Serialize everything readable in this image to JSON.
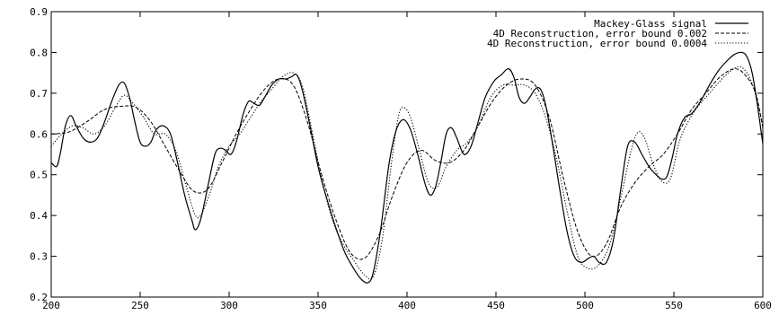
{
  "chart_data": {
    "type": "line",
    "title": "",
    "xlabel": "",
    "ylabel": "",
    "xlim": [
      200,
      600
    ],
    "ylim": [
      0.2,
      0.9
    ],
    "grid": false,
    "legend_position": "top-right",
    "x_ticks": [
      "200",
      "250",
      "300",
      "350",
      "400",
      "450",
      "500",
      "550",
      "600"
    ],
    "y_ticks": [
      "0.2",
      "0.3",
      "0.4",
      "0.5",
      "0.6",
      "0.7",
      "0.8",
      "0.9"
    ],
    "series": [
      {
        "name": "Mackey-Glass signal",
        "style": "solid",
        "points": [
          [
            200,
            0.53
          ],
          [
            203,
            0.52
          ],
          [
            205,
            0.55
          ],
          [
            208,
            0.62
          ],
          [
            211,
            0.645
          ],
          [
            214,
            0.62
          ],
          [
            218,
            0.59
          ],
          [
            222,
            0.58
          ],
          [
            226,
            0.59
          ],
          [
            230,
            0.63
          ],
          [
            234,
            0.68
          ],
          [
            238,
            0.72
          ],
          [
            241,
            0.725
          ],
          [
            244,
            0.69
          ],
          [
            247,
            0.63
          ],
          [
            250,
            0.58
          ],
          [
            253,
            0.57
          ],
          [
            256,
            0.58
          ],
          [
            259,
            0.61
          ],
          [
            263,
            0.62
          ],
          [
            267,
            0.6
          ],
          [
            271,
            0.53
          ],
          [
            275,
            0.45
          ],
          [
            279,
            0.39
          ],
          [
            281,
            0.365
          ],
          [
            284,
            0.39
          ],
          [
            288,
            0.47
          ],
          [
            292,
            0.55
          ],
          [
            295,
            0.565
          ],
          [
            298,
            0.56
          ],
          [
            301,
            0.55
          ],
          [
            304,
            0.58
          ],
          [
            308,
            0.65
          ],
          [
            311,
            0.68
          ],
          [
            314,
            0.675
          ],
          [
            317,
            0.67
          ],
          [
            320,
            0.69
          ],
          [
            324,
            0.72
          ],
          [
            328,
            0.735
          ],
          [
            332,
            0.735
          ],
          [
            335,
            0.74
          ],
          [
            338,
            0.745
          ],
          [
            341,
            0.71
          ],
          [
            345,
            0.63
          ],
          [
            350,
            0.52
          ],
          [
            355,
            0.44
          ],
          [
            360,
            0.37
          ],
          [
            365,
            0.31
          ],
          [
            370,
            0.27
          ],
          [
            374,
            0.245
          ],
          [
            378,
            0.235
          ],
          [
            381,
            0.26
          ],
          [
            385,
            0.36
          ],
          [
            390,
            0.53
          ],
          [
            394,
            0.61
          ],
          [
            398,
            0.635
          ],
          [
            402,
            0.61
          ],
          [
            406,
            0.55
          ],
          [
            410,
            0.48
          ],
          [
            413,
            0.45
          ],
          [
            416,
            0.47
          ],
          [
            419,
            0.53
          ],
          [
            422,
            0.6
          ],
          [
            425,
            0.615
          ],
          [
            428,
            0.59
          ],
          [
            432,
            0.55
          ],
          [
            436,
            0.57
          ],
          [
            440,
            0.63
          ],
          [
            444,
            0.69
          ],
          [
            449,
            0.73
          ],
          [
            453,
            0.745
          ],
          [
            457,
            0.76
          ],
          [
            460,
            0.74
          ],
          [
            463,
            0.69
          ],
          [
            466,
            0.675
          ],
          [
            469,
            0.69
          ],
          [
            472,
            0.71
          ],
          [
            475,
            0.71
          ],
          [
            478,
            0.67
          ],
          [
            482,
            0.57
          ],
          [
            486,
            0.46
          ],
          [
            490,
            0.36
          ],
          [
            494,
            0.3
          ],
          [
            498,
            0.285
          ],
          [
            502,
            0.295
          ],
          [
            505,
            0.3
          ],
          [
            508,
            0.285
          ],
          [
            512,
            0.285
          ],
          [
            516,
            0.34
          ],
          [
            520,
            0.46
          ],
          [
            524,
            0.57
          ],
          [
            528,
            0.58
          ],
          [
            532,
            0.55
          ],
          [
            536,
            0.52
          ],
          [
            540,
            0.5
          ],
          [
            543,
            0.49
          ],
          [
            546,
            0.495
          ],
          [
            549,
            0.54
          ],
          [
            552,
            0.6
          ],
          [
            556,
            0.64
          ],
          [
            560,
            0.65
          ],
          [
            565,
            0.68
          ],
          [
            570,
            0.72
          ],
          [
            575,
            0.755
          ],
          [
            580,
            0.78
          ],
          [
            584,
            0.795
          ],
          [
            588,
            0.8
          ],
          [
            591,
            0.79
          ],
          [
            594,
            0.75
          ],
          [
            597,
            0.67
          ],
          [
            600,
            0.575
          ]
        ]
      },
      {
        "name": "4D Reconstruction, error bound  0.002",
        "style": "dashed",
        "points": [
          [
            200,
            0.6
          ],
          [
            210,
            0.605
          ],
          [
            220,
            0.63
          ],
          [
            230,
            0.66
          ],
          [
            240,
            0.668
          ],
          [
            248,
            0.665
          ],
          [
            256,
            0.63
          ],
          [
            264,
            0.57
          ],
          [
            272,
            0.51
          ],
          [
            280,
            0.46
          ],
          [
            288,
            0.465
          ],
          [
            296,
            0.53
          ],
          [
            304,
            0.6
          ],
          [
            312,
            0.66
          ],
          [
            320,
            0.71
          ],
          [
            328,
            0.735
          ],
          [
            336,
            0.72
          ],
          [
            344,
            0.63
          ],
          [
            352,
            0.5
          ],
          [
            360,
            0.39
          ],
          [
            368,
            0.31
          ],
          [
            376,
            0.295
          ],
          [
            384,
            0.35
          ],
          [
            392,
            0.45
          ],
          [
            400,
            0.53
          ],
          [
            408,
            0.56
          ],
          [
            416,
            0.535
          ],
          [
            424,
            0.53
          ],
          [
            432,
            0.56
          ],
          [
            440,
            0.62
          ],
          [
            448,
            0.68
          ],
          [
            456,
            0.72
          ],
          [
            464,
            0.735
          ],
          [
            472,
            0.72
          ],
          [
            480,
            0.64
          ],
          [
            488,
            0.49
          ],
          [
            496,
            0.36
          ],
          [
            504,
            0.3
          ],
          [
            512,
            0.33
          ],
          [
            520,
            0.42
          ],
          [
            528,
            0.48
          ],
          [
            536,
            0.52
          ],
          [
            544,
            0.55
          ],
          [
            552,
            0.6
          ],
          [
            560,
            0.66
          ],
          [
            568,
            0.7
          ],
          [
            576,
            0.74
          ],
          [
            584,
            0.76
          ],
          [
            590,
            0.745
          ],
          [
            596,
            0.7
          ],
          [
            600,
            0.615
          ]
        ]
      },
      {
        "name": "4D Reconstruction, error bound 0.0004",
        "style": "dotted",
        "points": [
          [
            200,
            0.57
          ],
          [
            206,
            0.6
          ],
          [
            212,
            0.62
          ],
          [
            218,
            0.615
          ],
          [
            224,
            0.6
          ],
          [
            230,
            0.62
          ],
          [
            236,
            0.665
          ],
          [
            241,
            0.695
          ],
          [
            246,
            0.675
          ],
          [
            252,
            0.64
          ],
          [
            258,
            0.6
          ],
          [
            264,
            0.6
          ],
          [
            270,
            0.56
          ],
          [
            276,
            0.47
          ],
          [
            282,
            0.395
          ],
          [
            288,
            0.44
          ],
          [
            294,
            0.52
          ],
          [
            300,
            0.57
          ],
          [
            306,
            0.6
          ],
          [
            312,
            0.64
          ],
          [
            318,
            0.68
          ],
          [
            324,
            0.71
          ],
          [
            330,
            0.74
          ],
          [
            336,
            0.75
          ],
          [
            341,
            0.72
          ],
          [
            346,
            0.62
          ],
          [
            352,
            0.49
          ],
          [
            358,
            0.39
          ],
          [
            364,
            0.33
          ],
          [
            370,
            0.29
          ],
          [
            376,
            0.255
          ],
          [
            381,
            0.25
          ],
          [
            386,
            0.34
          ],
          [
            391,
            0.52
          ],
          [
            395,
            0.64
          ],
          [
            398,
            0.665
          ],
          [
            402,
            0.64
          ],
          [
            407,
            0.56
          ],
          [
            412,
            0.48
          ],
          [
            417,
            0.47
          ],
          [
            422,
            0.52
          ],
          [
            428,
            0.56
          ],
          [
            434,
            0.58
          ],
          [
            440,
            0.62
          ],
          [
            447,
            0.69
          ],
          [
            454,
            0.72
          ],
          [
            460,
            0.72
          ],
          [
            466,
            0.72
          ],
          [
            472,
            0.7
          ],
          [
            478,
            0.64
          ],
          [
            484,
            0.54
          ],
          [
            490,
            0.41
          ],
          [
            496,
            0.3
          ],
          [
            502,
            0.27
          ],
          [
            508,
            0.28
          ],
          [
            514,
            0.33
          ],
          [
            520,
            0.44
          ],
          [
            526,
            0.56
          ],
          [
            530,
            0.605
          ],
          [
            534,
            0.585
          ],
          [
            538,
            0.53
          ],
          [
            543,
            0.485
          ],
          [
            548,
            0.49
          ],
          [
            553,
            0.58
          ],
          [
            558,
            0.63
          ],
          [
            564,
            0.67
          ],
          [
            570,
            0.7
          ],
          [
            576,
            0.73
          ],
          [
            582,
            0.755
          ],
          [
            587,
            0.765
          ],
          [
            591,
            0.75
          ],
          [
            595,
            0.71
          ],
          [
            600,
            0.62
          ]
        ]
      }
    ]
  }
}
